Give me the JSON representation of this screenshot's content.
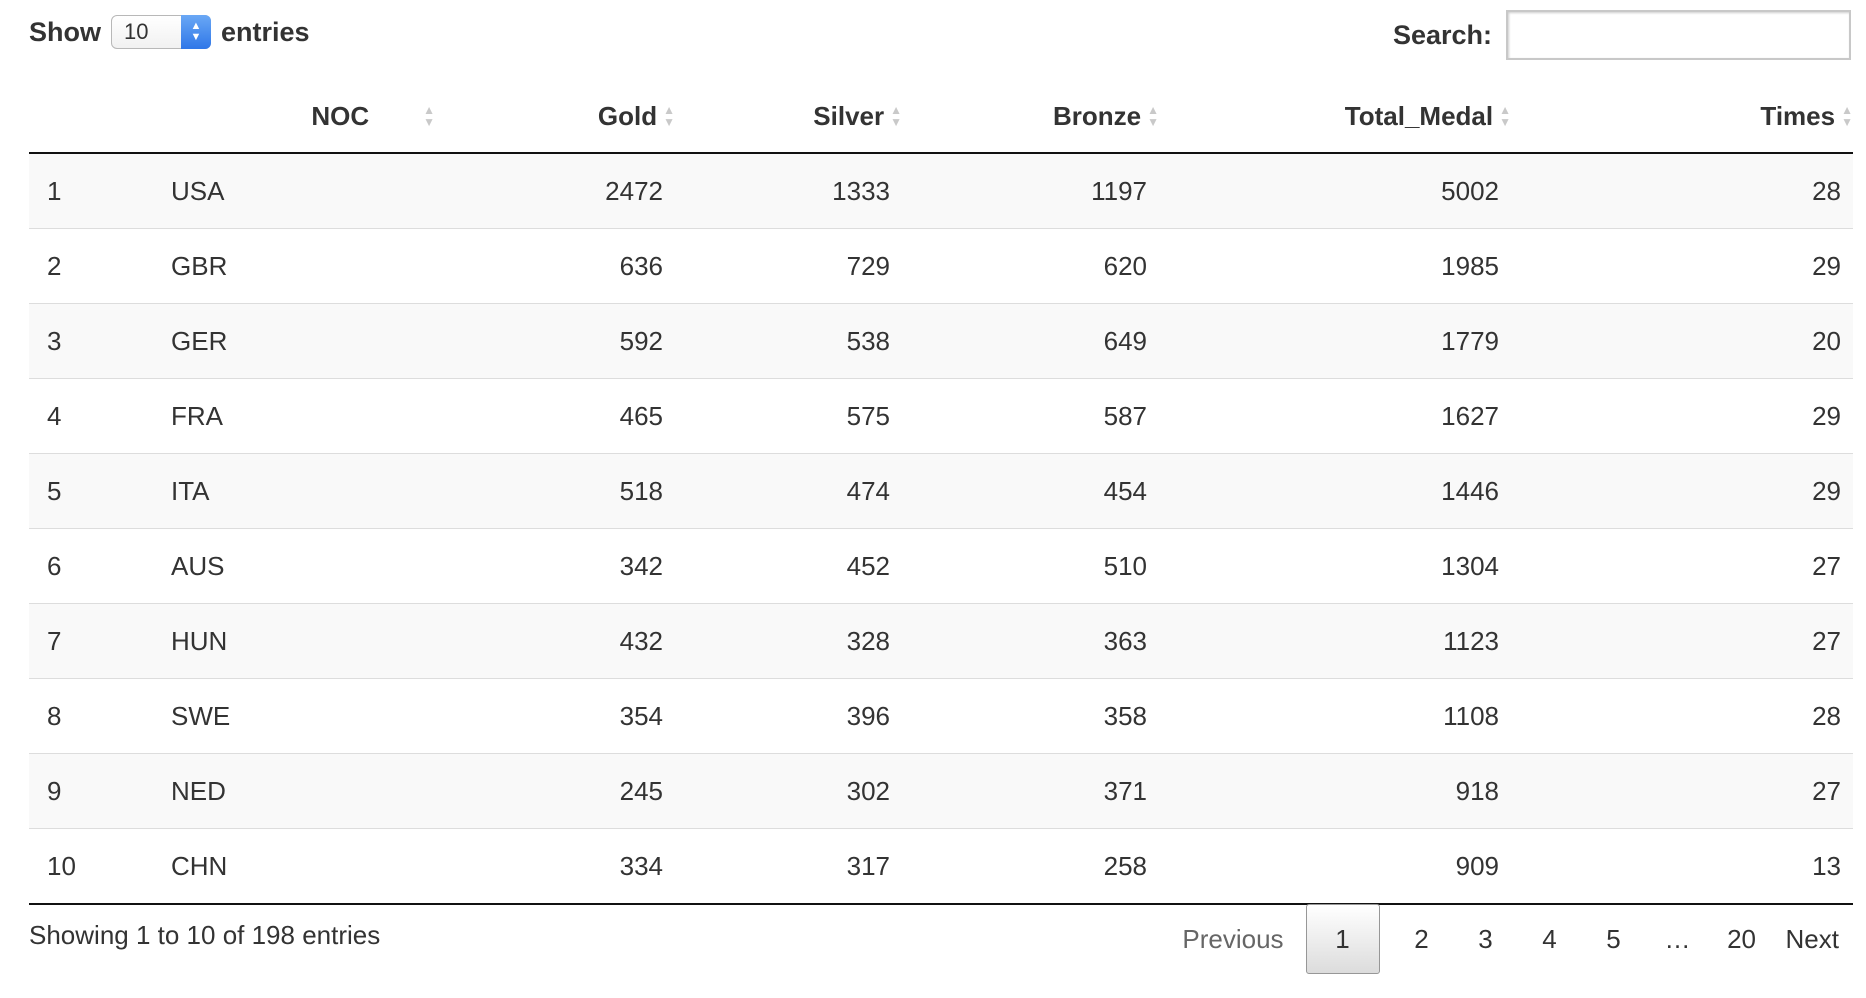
{
  "length": {
    "label_before": "Show",
    "value": "10",
    "label_after": "entries"
  },
  "search": {
    "label": "Search:",
    "value": "",
    "placeholder": ""
  },
  "table": {
    "columns": [
      {
        "key": "idx",
        "label": ""
      },
      {
        "key": "noc",
        "label": "NOC"
      },
      {
        "key": "gold",
        "label": "Gold"
      },
      {
        "key": "silver",
        "label": "Silver"
      },
      {
        "key": "bronze",
        "label": "Bronze"
      },
      {
        "key": "total",
        "label": "Total_Medal"
      },
      {
        "key": "times",
        "label": "Times"
      }
    ],
    "rows": [
      {
        "idx": "1",
        "noc": "USA",
        "gold": "2472",
        "silver": "1333",
        "bronze": "1197",
        "total": "5002",
        "times": "28"
      },
      {
        "idx": "2",
        "noc": "GBR",
        "gold": "636",
        "silver": "729",
        "bronze": "620",
        "total": "1985",
        "times": "29"
      },
      {
        "idx": "3",
        "noc": "GER",
        "gold": "592",
        "silver": "538",
        "bronze": "649",
        "total": "1779",
        "times": "20"
      },
      {
        "idx": "4",
        "noc": "FRA",
        "gold": "465",
        "silver": "575",
        "bronze": "587",
        "total": "1627",
        "times": "29"
      },
      {
        "idx": "5",
        "noc": "ITA",
        "gold": "518",
        "silver": "474",
        "bronze": "454",
        "total": "1446",
        "times": "29"
      },
      {
        "idx": "6",
        "noc": "AUS",
        "gold": "342",
        "silver": "452",
        "bronze": "510",
        "total": "1304",
        "times": "27"
      },
      {
        "idx": "7",
        "noc": "HUN",
        "gold": "432",
        "silver": "328",
        "bronze": "363",
        "total": "1123",
        "times": "27"
      },
      {
        "idx": "8",
        "noc": "SWE",
        "gold": "354",
        "silver": "396",
        "bronze": "358",
        "total": "1108",
        "times": "28"
      },
      {
        "idx": "9",
        "noc": "NED",
        "gold": "245",
        "silver": "302",
        "bronze": "371",
        "total": "918",
        "times": "27"
      },
      {
        "idx": "10",
        "noc": "CHN",
        "gold": "334",
        "silver": "317",
        "bronze": "258",
        "total": "909",
        "times": "13"
      }
    ]
  },
  "footer": {
    "info": "Showing 1 to 10 of 198 entries",
    "pagination": {
      "previous": "Previous",
      "pages": [
        "1",
        "2",
        "3",
        "4",
        "5",
        "…",
        "20"
      ],
      "current": "1",
      "next": "Next"
    }
  },
  "icons": {
    "stepper_up": "▲",
    "stepper_down": "▼",
    "sort_up": "▲",
    "sort_down": "▼"
  },
  "colors": {
    "stepper_accent": "#2f77e8",
    "striped_row": "#f9f9f9",
    "header_rule": "#111111"
  }
}
